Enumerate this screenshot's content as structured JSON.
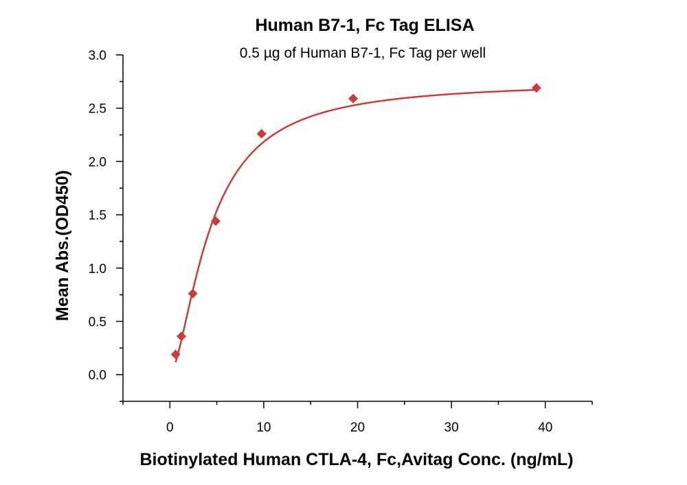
{
  "chart_data": {
    "type": "scatter",
    "title": "Human B7-1, Fc Tag ELISA",
    "subtitle": "0.5 µg of Human B7-1, Fc Tag per well",
    "xlabel": "Biotinylated Human CTLA-4, Fc,Avitag Conc. (ng/mL)",
    "ylabel": "Mean Abs.(OD450)",
    "xlim": [
      -5,
      45
    ],
    "ylim": [
      -0.25,
      3.0
    ],
    "x_major_ticks": [
      0,
      10,
      20,
      30,
      40
    ],
    "x_minor_ticks": [
      -5,
      5,
      15,
      25,
      35,
      45
    ],
    "y_major_ticks": [
      0.0,
      0.5,
      1.0,
      1.5,
      2.0,
      2.5,
      3.0
    ],
    "y_minor_ticks": [
      -0.25,
      0.25,
      0.75,
      1.25,
      1.75,
      2.25,
      2.75
    ],
    "x_tick_labels": [
      "0",
      "10",
      "20",
      "30",
      "40"
    ],
    "y_tick_labels": [
      "0.0",
      "0.5",
      "1.0",
      "1.5",
      "2.0",
      "2.5",
      "3.0"
    ],
    "grid": false,
    "legend": "none",
    "marker": "diamond",
    "color": "#c83c3c",
    "series": [
      {
        "x": [
          0.61,
          1.22,
          2.44,
          4.88,
          9.77,
          19.53,
          39.06
        ],
        "y": [
          0.19,
          0.36,
          0.76,
          1.44,
          2.26,
          2.59,
          2.69
        ]
      }
    ],
    "fit_curve": {
      "type": "4PL",
      "bottom": 0.0,
      "top": 2.75,
      "ec50": 4.3,
      "hill": 1.6,
      "x_range": [
        0.61,
        39.06
      ]
    }
  }
}
